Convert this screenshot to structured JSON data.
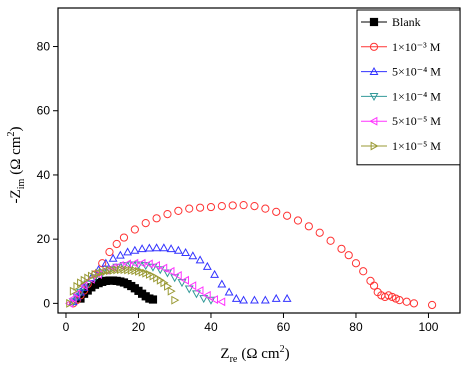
{
  "chart_data": {
    "type": "scatter",
    "xlabel": [
      "Z",
      "re",
      "(Ω  cm",
      "2",
      ")"
    ],
    "ylabel": [
      "-Z",
      "im",
      "(Ω  cm",
      "2",
      ")"
    ],
    "xlim": [
      -2.2,
      108.7
    ],
    "ylim": [
      -3,
      92
    ],
    "xticks": [
      0,
      20,
      40,
      60,
      80,
      100
    ],
    "yticks": [
      0,
      20,
      40,
      60,
      80
    ],
    "legend": "upper right",
    "series": [
      {
        "name": "Blank",
        "color": "#000000",
        "marker": "square",
        "filled": true,
        "x": [
          4,
          5,
          6,
          7,
          8,
          9,
          10,
          11,
          12,
          13,
          14,
          15,
          16,
          17,
          18,
          19,
          20,
          21,
          22,
          23,
          24
        ],
        "y": [
          1.5,
          3,
          4,
          5,
          5.8,
          6.3,
          6.7,
          7,
          7.1,
          7.1,
          7,
          6.8,
          6.5,
          6,
          5.4,
          4.7,
          3.9,
          3,
          2.2,
          1.5,
          1.2
        ]
      },
      {
        "name": "1×10⁻³ M",
        "color": "#ff3333",
        "marker": "circle",
        "filled": false,
        "x": [
          2,
          3,
          4,
          5,
          6,
          8,
          10,
          12,
          14,
          16,
          19,
          22,
          25,
          28,
          31,
          34,
          37,
          40,
          43,
          46,
          49,
          52,
          55,
          58,
          61,
          64,
          67,
          70,
          73,
          76,
          78,
          80,
          82,
          84,
          85,
          86,
          87,
          88,
          89,
          90,
          91,
          92,
          94,
          96,
          101
        ],
        "y": [
          0,
          1,
          2.5,
          4,
          6,
          9,
          12.5,
          16,
          18.5,
          20.5,
          23,
          25,
          26.5,
          27.8,
          28.8,
          29.5,
          29.8,
          30,
          30.3,
          30.5,
          30.6,
          30.3,
          29.5,
          28.5,
          27.3,
          25.8,
          24,
          22,
          19.5,
          17,
          15,
          12.5,
          10,
          7,
          5.5,
          3.5,
          2.5,
          2,
          2.5,
          2,
          1.5,
          1,
          0.5,
          0,
          -0.5
        ]
      },
      {
        "name": "5×10⁻⁴ M",
        "color": "#3333ff",
        "marker": "triangle-up",
        "filled": false,
        "x": [
          2,
          3,
          4,
          5,
          7,
          9,
          11,
          13,
          15,
          17,
          19,
          21,
          23,
          25,
          27,
          29,
          31,
          33,
          35,
          37,
          39,
          41,
          43,
          45,
          47,
          49,
          52,
          55,
          58,
          61
        ],
        "y": [
          0.5,
          2,
          3.5,
          5,
          8,
          10.5,
          12.5,
          14,
          15,
          16,
          16.5,
          17,
          17.2,
          17.3,
          17.3,
          17,
          16.5,
          15.8,
          14.8,
          13.5,
          11.5,
          9,
          6,
          3.5,
          1.5,
          1,
          1,
          1,
          1.5,
          1.5
        ]
      },
      {
        "name": "1×10⁻⁴ M",
        "color": "#339999",
        "marker": "triangle-down",
        "filled": false,
        "x": [
          2,
          3,
          4,
          6,
          8,
          10,
          12,
          14,
          16,
          18,
          20,
          22,
          24,
          26,
          28,
          30,
          32,
          34,
          36,
          38,
          40
        ],
        "y": [
          0.5,
          2,
          3.5,
          6,
          8,
          9.5,
          10.5,
          11.3,
          11.8,
          12,
          12,
          11.8,
          11.3,
          10.5,
          9.5,
          8,
          6.5,
          4.5,
          3,
          1.5,
          1
        ]
      },
      {
        "name": "5×10⁻⁵ M",
        "color": "#ff33ff",
        "marker": "triangle-left",
        "filled": false,
        "x": [
          1,
          2,
          3,
          5,
          7,
          9,
          11,
          13,
          15,
          17,
          19,
          21,
          23,
          25,
          27,
          29,
          31,
          33,
          35,
          37,
          39,
          41,
          43
        ],
        "y": [
          0,
          1.5,
          3,
          5.5,
          7.5,
          9,
          10.3,
          11.2,
          11.8,
          12.3,
          12.5,
          12.5,
          12.3,
          11.8,
          11,
          10,
          8.7,
          7.2,
          5.5,
          4,
          2.5,
          1.2,
          0.5
        ]
      },
      {
        "name": "1×10⁻⁵ M",
        "color": "#999933",
        "marker": "triangle-right",
        "filled": false,
        "x": [
          1,
          2,
          3,
          4,
          5,
          6,
          7,
          8,
          9,
          10,
          11,
          12,
          13,
          14,
          15,
          16,
          17,
          18,
          19,
          20,
          21,
          22,
          23,
          24,
          25,
          26,
          27,
          28,
          29,
          30
        ],
        "y": [
          0,
          3.8,
          5.3,
          6.4,
          7.2,
          7.9,
          8.5,
          9,
          9.4,
          9.7,
          10,
          10.2,
          10.3,
          10.4,
          10.5,
          10.5,
          10.4,
          10.3,
          10.2,
          10,
          9.7,
          9.4,
          9,
          8.5,
          7.9,
          7.2,
          6.4,
          5.3,
          3.8,
          1
        ]
      }
    ]
  }
}
